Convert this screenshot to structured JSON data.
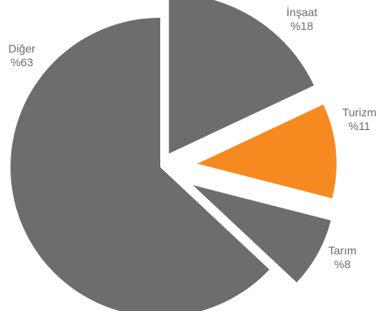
{
  "chart_data": {
    "type": "pie",
    "title": "",
    "exploded": true,
    "colors": {
      "default": "#6d6d6f",
      "highlight": "#f68a21",
      "label": "#6d6d6f"
    },
    "slices": [
      {
        "label": "İnşaat",
        "value": 18,
        "value_label": "%18",
        "highlight": false
      },
      {
        "label": "Turizm",
        "value": 11,
        "value_label": "%11",
        "highlight": true
      },
      {
        "label": "Tarım",
        "value": 8,
        "value_label": "%8",
        "highlight": false
      },
      {
        "label": "Diğer",
        "value": 63,
        "value_label": "%63",
        "highlight": false
      }
    ]
  }
}
